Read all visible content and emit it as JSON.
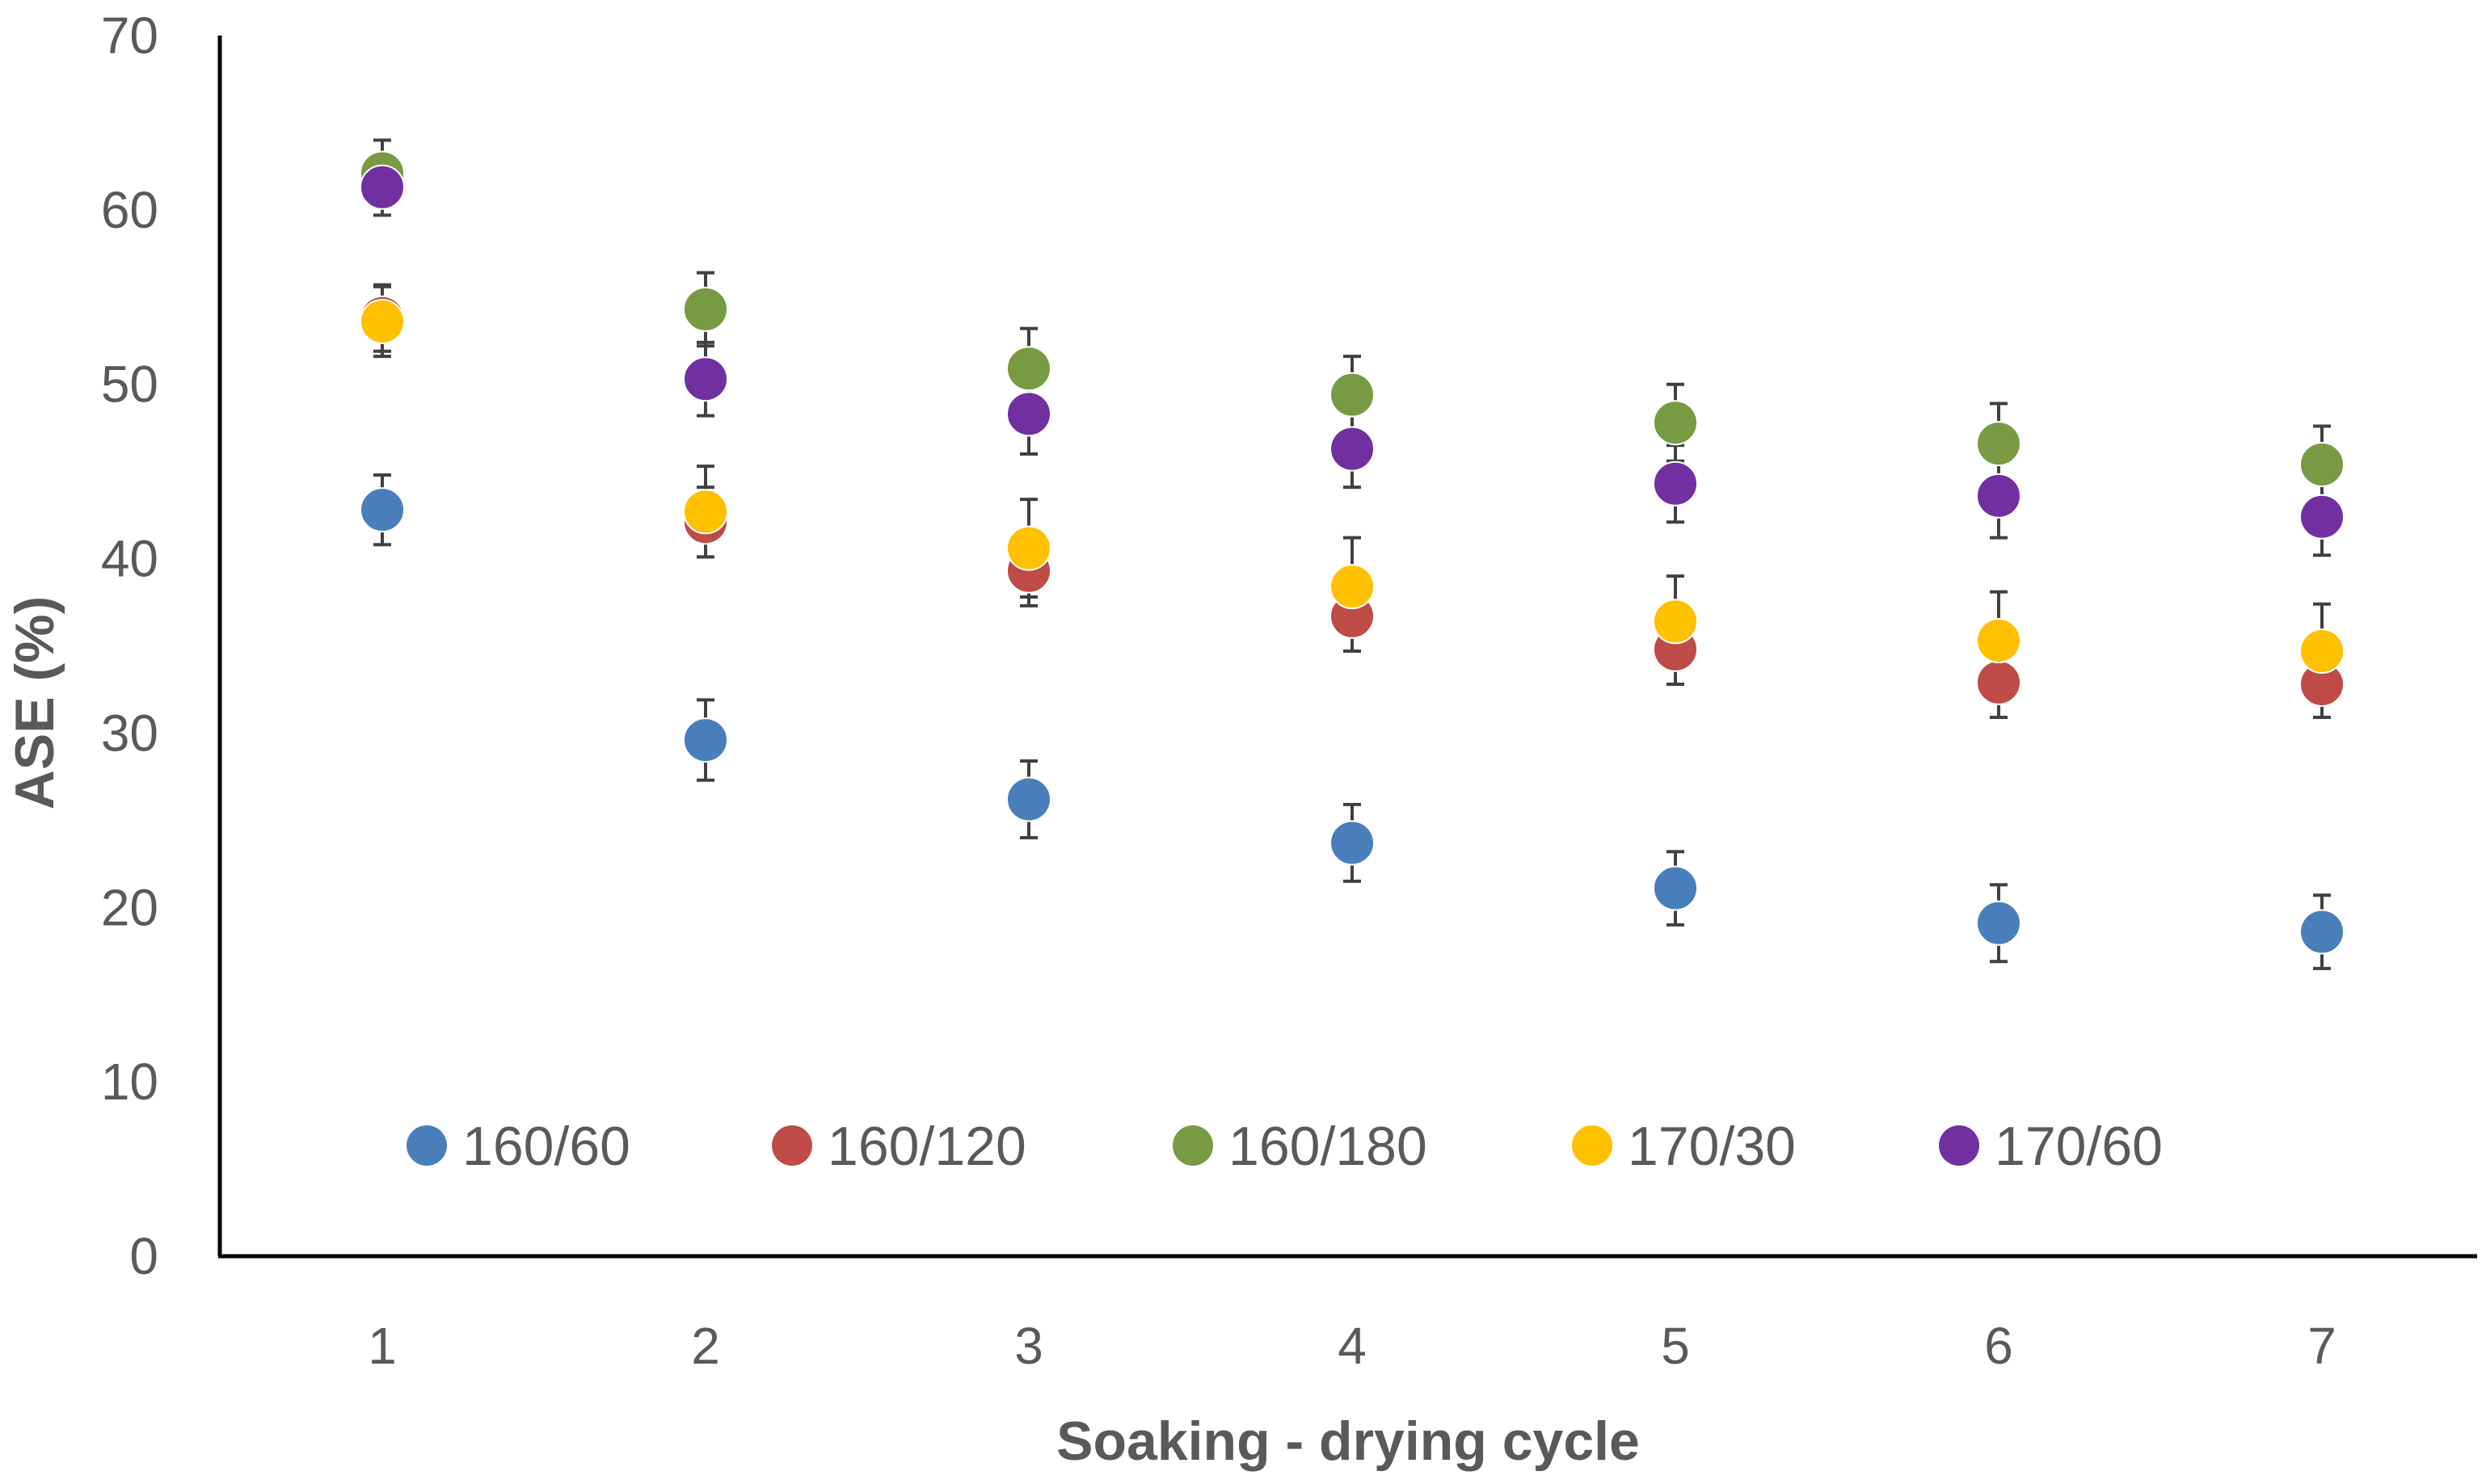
{
  "chart_data": {
    "type": "scatter",
    "title": "",
    "xlabel": "Soaking - drying cycle",
    "ylabel": "ASE  (%)",
    "x": [
      1,
      2,
      3,
      4,
      5,
      6,
      7
    ],
    "xlim": [
      0.5,
      7.5
    ],
    "ylim": [
      0,
      70
    ],
    "yticks": [
      0,
      10,
      20,
      30,
      40,
      50,
      60,
      70
    ],
    "grid": false,
    "legend_position": "bottom-inside",
    "series": [
      {
        "name": "160/60",
        "color": "#4A7EBB",
        "values": [
          42.8,
          29.6,
          26.2,
          23.7,
          21.1,
          19.1,
          18.6
        ],
        "errors": [
          2.0,
          2.3,
          2.2,
          2.2,
          2.1,
          2.2,
          2.1
        ]
      },
      {
        "name": "160/120",
        "color": "#BE4B48",
        "values": [
          53.8,
          42.1,
          39.3,
          36.7,
          34.8,
          32.9,
          32.8
        ],
        "errors": [
          1.9,
          2.0,
          2.0,
          2.0,
          2.0,
          2.0,
          1.9
        ]
      },
      {
        "name": "160/180",
        "color": "#779A42",
        "values": [
          62.1,
          54.3,
          50.9,
          49.4,
          47.8,
          46.6,
          45.4
        ],
        "errors": [
          1.9,
          2.1,
          2.3,
          2.2,
          2.2,
          2.3,
          2.2
        ]
      },
      {
        "name": "170/30",
        "color": "#FFC000",
        "values": [
          53.6,
          42.7,
          40.6,
          38.4,
          36.4,
          35.3,
          34.7
        ],
        "errors": [
          2.0,
          2.6,
          2.8,
          2.8,
          2.6,
          2.8,
          2.7
        ]
      },
      {
        "name": "170/60",
        "color": "#7030A0",
        "values": [
          61.3,
          50.3,
          48.3,
          46.3,
          44.3,
          43.6,
          42.4
        ],
        "errors": [
          1.6,
          2.1,
          2.3,
          2.2,
          2.2,
          2.4,
          2.2
        ]
      }
    ]
  }
}
